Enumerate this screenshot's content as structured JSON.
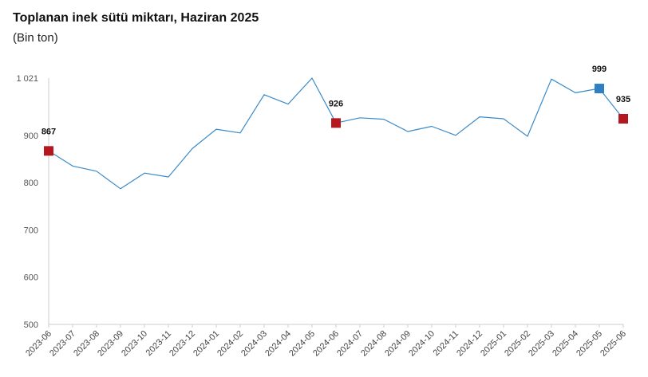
{
  "chart_data": {
    "type": "line",
    "title": "Toplanan inek sütü miktarı, Haziran 2025",
    "subtitle": "(Bin ton)",
    "xlabel": "",
    "ylabel": "",
    "ylim": [
      500,
      1021
    ],
    "yticks": [
      500,
      600,
      700,
      800,
      900,
      1021
    ],
    "ytick_labels": [
      "500",
      "600",
      "700",
      "800",
      "900",
      "1 021"
    ],
    "grid": false,
    "categories": [
      "2023-06",
      "2023-07",
      "2023-08",
      "2023-09",
      "2023-10",
      "2023-11",
      "2023-12",
      "2024-01",
      "2024-02",
      "2024-03",
      "2024-04",
      "2024-05",
      "2024-06",
      "2024-07",
      "2024-08",
      "2024-09",
      "2024-10",
      "2024-11",
      "2024-12",
      "2025-01",
      "2025-02",
      "2025-03",
      "2025-04",
      "2025-05",
      "2025-06"
    ],
    "series": [
      {
        "values": [
          867,
          835,
          824,
          787,
          820,
          812,
          872,
          913,
          905,
          986,
          966,
          1021,
          926,
          937,
          934,
          908,
          919,
          900,
          939,
          935,
          898,
          1019,
          990,
          999,
          935
        ],
        "color": "#3a8ac8"
      }
    ],
    "highlights": [
      {
        "index": 0,
        "label": "867",
        "color": "#b5171e"
      },
      {
        "index": 12,
        "label": "926",
        "color": "#b5171e"
      },
      {
        "index": 23,
        "label": "999",
        "color": "#2f7fc1"
      },
      {
        "index": 24,
        "label": "935",
        "color": "#b5171e"
      }
    ],
    "axis_color": "#cccccc"
  }
}
